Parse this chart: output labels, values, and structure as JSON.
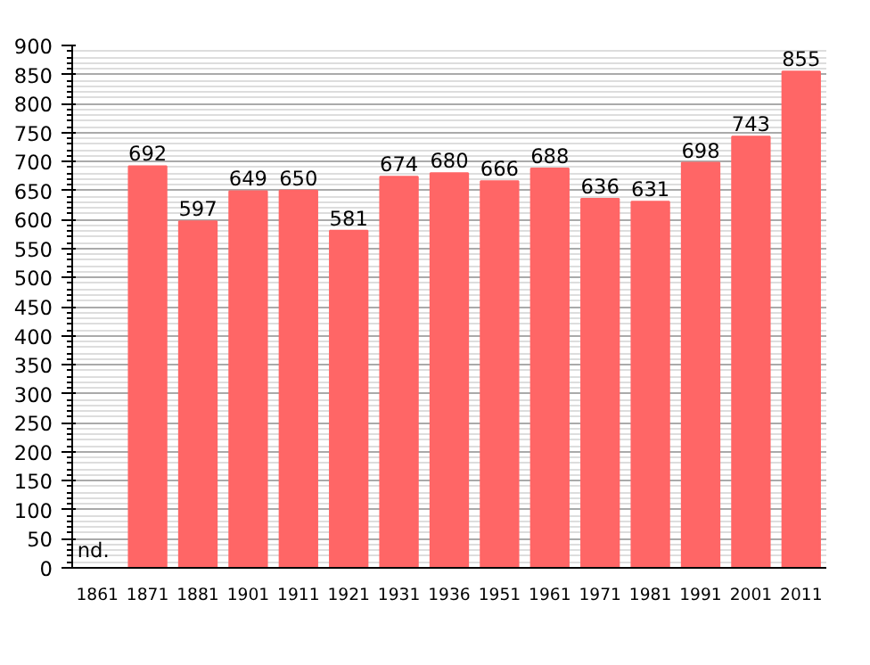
{
  "chart_data": {
    "type": "bar",
    "categories": [
      "1861",
      "1871",
      "1881",
      "1901",
      "1911",
      "1921",
      "1931",
      "1936",
      "1951",
      "1961",
      "1971",
      "1981",
      "1991",
      "2001",
      "2011"
    ],
    "values": [
      null,
      692,
      597,
      649,
      650,
      581,
      674,
      680,
      666,
      688,
      636,
      631,
      698,
      743,
      855
    ],
    "value_labels": [
      "nd.",
      "692",
      "597",
      "649",
      "650",
      "581",
      "674",
      "680",
      "666",
      "688",
      "636",
      "631",
      "698",
      "743",
      "855"
    ],
    "color": "#ff6666",
    "ylim": [
      0,
      900
    ],
    "yticks": [
      0,
      50,
      100,
      150,
      200,
      250,
      300,
      350,
      400,
      450,
      500,
      550,
      600,
      650,
      700,
      750,
      800,
      850,
      900
    ],
    "grid": "y"
  }
}
